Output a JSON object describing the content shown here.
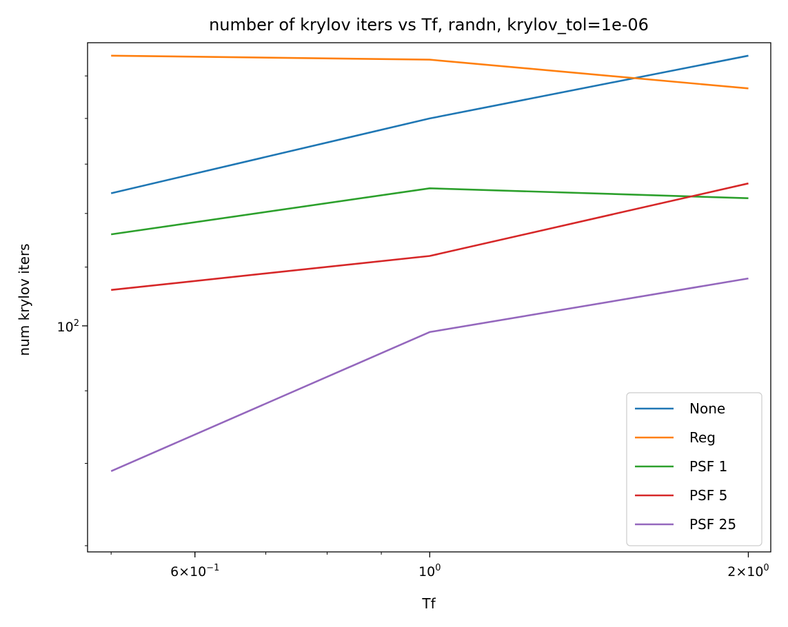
{
  "chart_data": {
    "type": "line",
    "title": "number of krylov iters vs Tf, randn, krylov_tol=1e-06",
    "xlabel": "Tf",
    "ylabel": "num krylov iters",
    "x_scale": "log",
    "y_scale": "log",
    "xlim": [
      0.475,
      2.1
    ],
    "ylim": [
      69.3,
      158.3
    ],
    "x": [
      0.5,
      1,
      2
    ],
    "x_ticks": [
      {
        "value": 0.6,
        "base": "6×10",
        "exp": "−1"
      },
      {
        "value": 1,
        "base": "10",
        "exp": "0"
      },
      {
        "value": 2,
        "base": "2×10",
        "exp": "0"
      }
    ],
    "y_ticks": [
      {
        "value": 100,
        "base": "10",
        "exp": "2"
      }
    ],
    "legend_position": "lower-right",
    "grid": false,
    "series": [
      {
        "name": "None",
        "color": "#1f77b4",
        "values": [
          124,
          140,
          155
        ]
      },
      {
        "name": "Reg",
        "color": "#ff7f0e",
        "values": [
          155,
          154,
          147
        ]
      },
      {
        "name": "PSF 1",
        "color": "#2ca02c",
        "values": [
          116,
          125,
          123
        ]
      },
      {
        "name": "PSF 5",
        "color": "#d62728",
        "values": [
          106,
          112,
          126
        ]
      },
      {
        "name": "PSF 25",
        "color": "#9467bd",
        "values": [
          79,
          99,
          108
        ]
      }
    ]
  }
}
